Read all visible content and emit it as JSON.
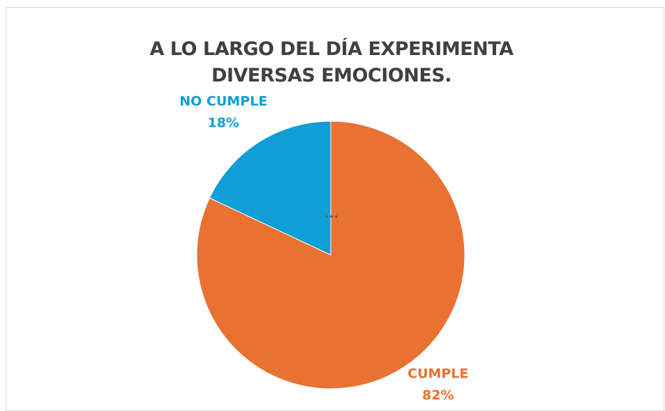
{
  "chart_data": {
    "type": "pie",
    "title": "A LO LARGO DEL DÍA EXPERIMENTA DIVERSAS EMOCIONES.",
    "categories": [
      "CUMPLE",
      "NO CUMPLE"
    ],
    "values": [
      82,
      18
    ],
    "value_labels": [
      "82%",
      "18%"
    ],
    "colors": [
      "#E97132",
      "#0F9ED5"
    ]
  }
}
